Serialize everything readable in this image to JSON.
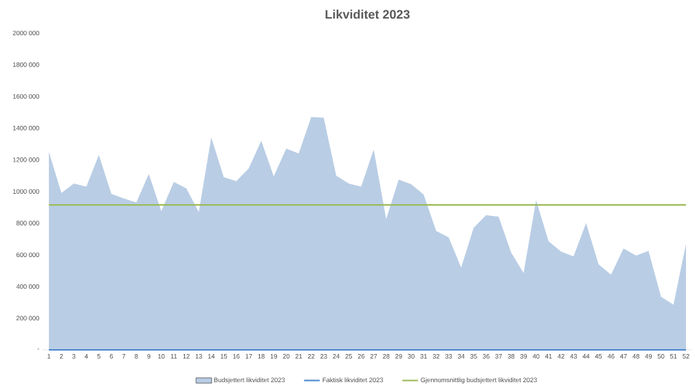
{
  "chart_data": {
    "type": "area",
    "title": "Likviditet 2023",
    "categories": [
      "1",
      "2",
      "3",
      "4",
      "5",
      "6",
      "7",
      "8",
      "9",
      "10",
      "11",
      "12",
      "13",
      "14",
      "15",
      "16",
      "17",
      "18",
      "19",
      "20",
      "21",
      "22",
      "23",
      "24",
      "25",
      "26",
      "27",
      "28",
      "29",
      "30",
      "31",
      "32",
      "33",
      "34",
      "35",
      "36",
      "37",
      "38",
      "39",
      "40",
      "41",
      "42",
      "43",
      "44",
      "45",
      "46",
      "47",
      "48",
      "49",
      "50",
      "51",
      "52"
    ],
    "series": [
      {
        "name": "Budsjettert likviditet 2023",
        "color": "#b9cde5",
        "values": [
          1250000,
          990000,
          1050000,
          1030000,
          1230000,
          985000,
          955000,
          930000,
          1110000,
          875000,
          1060000,
          1020000,
          870000,
          1340000,
          1090000,
          1065000,
          1145000,
          1320000,
          1095000,
          1270000,
          1240000,
          1470000,
          1465000,
          1100000,
          1050000,
          1030000,
          1265000,
          825000,
          1075000,
          1045000,
          980000,
          750000,
          710000,
          520000,
          770000,
          850000,
          840000,
          615000,
          485000,
          945000,
          685000,
          620000,
          590000,
          800000,
          540000,
          475000,
          640000,
          595000,
          625000,
          335000,
          285000,
          670000
        ]
      },
      {
        "name": "Faktisk likviditet 2023",
        "type": "line",
        "color": "#4a86d0",
        "values": [
          0,
          0,
          0,
          0,
          0,
          0,
          0,
          0,
          0,
          0,
          0,
          0,
          0,
          0,
          0,
          0,
          0,
          0,
          0,
          0,
          0,
          0,
          0,
          0,
          0,
          0,
          0,
          0,
          0,
          0,
          0,
          0,
          0,
          0,
          0,
          0,
          0,
          0,
          0,
          0,
          0,
          0,
          0,
          0,
          0,
          0,
          0,
          0,
          0,
          0,
          0,
          0
        ]
      },
      {
        "name": "Gjennomsnittlig budsjettert likviditet 2023",
        "type": "line",
        "color": "#9bbb59",
        "values": [
          915000,
          915000,
          915000,
          915000,
          915000,
          915000,
          915000,
          915000,
          915000,
          915000,
          915000,
          915000,
          915000,
          915000,
          915000,
          915000,
          915000,
          915000,
          915000,
          915000,
          915000,
          915000,
          915000,
          915000,
          915000,
          915000,
          915000,
          915000,
          915000,
          915000,
          915000,
          915000,
          915000,
          915000,
          915000,
          915000,
          915000,
          915000,
          915000,
          915000,
          915000,
          915000,
          915000,
          915000,
          915000,
          915000,
          915000,
          915000,
          915000,
          915000,
          915000,
          915000
        ]
      }
    ],
    "ylim": [
      0,
      2000000
    ],
    "yticks": [
      {
        "value": 0,
        "label": "-"
      },
      {
        "value": 200000,
        "label": "200 000"
      },
      {
        "value": 400000,
        "label": "400 000"
      },
      {
        "value": 600000,
        "label": "600 000"
      },
      {
        "value": 800000,
        "label": "800 000"
      },
      {
        "value": 1000000,
        "label": "1000 000"
      },
      {
        "value": 1200000,
        "label": "1200 000"
      },
      {
        "value": 1400000,
        "label": "1400 000"
      },
      {
        "value": 1600000,
        "label": "1600 000"
      },
      {
        "value": 1800000,
        "label": "1800 000"
      },
      {
        "value": 2000000,
        "label": "2000 000"
      }
    ],
    "legend": "bottom"
  }
}
